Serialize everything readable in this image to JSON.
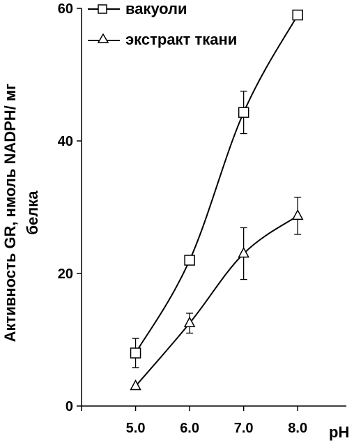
{
  "chart_data": {
    "type": "line",
    "x": [
      5.0,
      6.0,
      7.0,
      8.0
    ],
    "x_tick_labels": [
      "5.0",
      "6.0",
      "7.0",
      "8.0"
    ],
    "y_ticks": [
      0,
      20,
      40,
      60
    ],
    "y_tick_labels": [
      "0",
      "20",
      "40",
      "60"
    ],
    "xlabel": "pH",
    "ylabel": "Активность GR, нмоль NADPH/ мг",
    "ylabel_line2": "белка",
    "xlim": [
      4.0,
      8.9
    ],
    "ylim": [
      0,
      60
    ],
    "grid": false,
    "legend_position": "top",
    "series": [
      {
        "name": "вакуоли",
        "marker": "square",
        "values": [
          8,
          22,
          44.3,
          59
        ],
        "errors": [
          2.2,
          0,
          3.2,
          0
        ]
      },
      {
        "name": "экстракт ткани",
        "marker": "triangle",
        "values": [
          3,
          12.5,
          23,
          28.7
        ],
        "errors": [
          0,
          1.5,
          3.9,
          2.8
        ]
      }
    ],
    "color": "#000000"
  }
}
